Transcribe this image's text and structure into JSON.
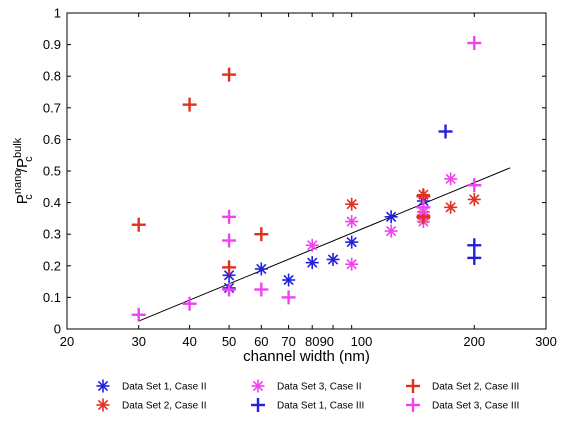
{
  "chart_data": {
    "type": "scatter",
    "xlabel": "channel width (nm)",
    "ylabel": "P_c^nano/P_c^bulk",
    "ylabel_parts": {
      "base": "P",
      "sup1": "nano",
      "sub1": "c",
      "slash": "/",
      "base2": "P",
      "sup2": "bulk",
      "sub2": "c"
    },
    "xscale": "log",
    "xlim": [
      20,
      300
    ],
    "ylim": [
      0,
      1
    ],
    "xticks": [
      20,
      30,
      40,
      50,
      60,
      70,
      80,
      90,
      100,
      200,
      300
    ],
    "xtick_labels": [
      "20",
      "30",
      "40",
      "50",
      "60",
      "70",
      "80",
      "90",
      "100",
      "200",
      "300"
    ],
    "yticks": [
      0,
      0.1,
      0.2,
      0.3,
      0.4,
      0.5,
      0.6,
      0.7,
      0.8,
      0.9,
      1
    ],
    "ytick_labels": [
      "0",
      "0.1",
      "0.2",
      "0.3",
      "0.4",
      "0.5",
      "0.6",
      "0.7",
      "0.8",
      "0.9",
      "1"
    ],
    "grid": false,
    "legend_position": "below",
    "series": [
      {
        "name": "Data Set 1, Case II",
        "marker": "asterisk",
        "color": "#2222dd",
        "x": [
          50,
          50,
          60,
          70,
          80,
          90,
          100,
          125,
          150
        ],
        "y": [
          0.13,
          0.17,
          0.19,
          0.155,
          0.21,
          0.22,
          0.275,
          0.355,
          0.405
        ]
      },
      {
        "name": "Data Set 2, Case II",
        "marker": "asterisk",
        "color": "#e03020",
        "x": [
          100,
          150,
          150,
          150,
          175,
          200
        ],
        "y": [
          0.395,
          0.425,
          0.36,
          0.35,
          0.385,
          0.41
        ]
      },
      {
        "name": "Data Set 3, Case II",
        "marker": "asterisk",
        "color": "#ee44ee",
        "x": [
          80,
          100,
          100,
          125,
          150,
          150,
          175
        ],
        "y": [
          0.265,
          0.34,
          0.205,
          0.31,
          0.34,
          0.37,
          0.475
        ]
      },
      {
        "name": "Data Set 1, Case III",
        "marker": "plus",
        "color": "#2222dd",
        "x": [
          170,
          200,
          200
        ],
        "y": [
          0.625,
          0.265,
          0.225
        ]
      },
      {
        "name": "Data Set 2, Case III",
        "marker": "plus",
        "color": "#e03020",
        "x": [
          30,
          40,
          50,
          50,
          60,
          150,
          150
        ],
        "y": [
          0.33,
          0.71,
          0.805,
          0.195,
          0.3,
          0.42,
          0.355
        ]
      },
      {
        "name": "Data Set 3, Case III",
        "marker": "plus",
        "color": "#ee44ee",
        "x": [
          30,
          40,
          50,
          50,
          50,
          60,
          70,
          150,
          200,
          200
        ],
        "y": [
          0.045,
          0.08,
          0.355,
          0.28,
          0.125,
          0.125,
          0.1,
          0.385,
          0.905,
          0.455
        ]
      }
    ],
    "fit_line": {
      "x": [
        30,
        245
      ],
      "y": [
        0.025,
        0.51
      ],
      "color": "#000000"
    },
    "legend_order": [
      0,
      1,
      2,
      3,
      4,
      5
    ]
  }
}
